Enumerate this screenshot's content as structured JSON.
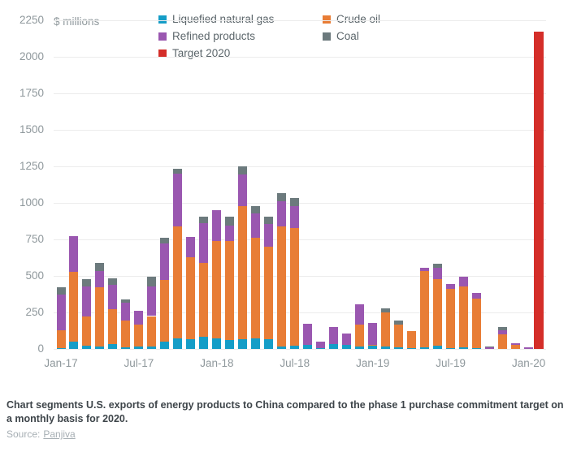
{
  "header": {
    "unit_label": "$ millions"
  },
  "legend": [
    {
      "key": "lng",
      "label": "Liquefied natural gas",
      "color": "#159DC7"
    },
    {
      "key": "crude",
      "label": "Crude oil",
      "color": "#E87D36"
    },
    {
      "key": "refined",
      "label": "Refined products",
      "color": "#9A57B0"
    },
    {
      "key": "coal",
      "label": "Coal",
      "color": "#6C7A7D"
    },
    {
      "key": "target",
      "label": "Target 2020",
      "color": "#D42E29"
    }
  ],
  "chart_data": {
    "type": "bar",
    "stacked": true,
    "unit": "$ millions",
    "ylim": [
      0,
      2250
    ],
    "yticks": [
      0,
      250,
      500,
      750,
      1000,
      1250,
      1500,
      1750,
      2000,
      2250
    ],
    "grid": true,
    "legend_position": "top",
    "categories": [
      "Jan-17",
      "Feb-17",
      "Mar-17",
      "Apr-17",
      "May-17",
      "Jun-17",
      "Jul-17",
      "Aug-17",
      "Sep-17",
      "Oct-17",
      "Nov-17",
      "Dec-17",
      "Jan-18",
      "Feb-18",
      "Mar-18",
      "Apr-18",
      "May-18",
      "Jun-18",
      "Jul-18",
      "Aug-18",
      "Sep-18",
      "Oct-18",
      "Nov-18",
      "Dec-18",
      "Jan-19",
      "Feb-19",
      "Mar-19",
      "Apr-19",
      "May-19",
      "Jun-19",
      "Jul-19",
      "Aug-19",
      "Sep-19",
      "Oct-19",
      "Nov-19",
      "Dec-19",
      "Jan-20"
    ],
    "x_tick_labels_shown": [
      "Jan-17",
      "Jul-17",
      "Jan-18",
      "Jul-18",
      "Jan-19",
      "Jul-19",
      "Jan-20"
    ],
    "series": [
      {
        "name": "Liquefied natural gas",
        "key": "lng",
        "values": [
          5,
          50,
          20,
          15,
          33,
          10,
          15,
          15,
          52,
          70,
          65,
          83,
          74,
          59,
          65,
          70,
          65,
          19,
          22,
          30,
          8,
          35,
          30,
          19,
          20,
          19,
          9,
          5,
          9,
          22,
          5,
          9,
          6,
          0,
          0,
          0,
          0
        ]
      },
      {
        "name": "Crude oil",
        "key": "crude",
        "values": [
          125,
          480,
          200,
          405,
          240,
          185,
          150,
          210,
          420,
          770,
          565,
          506,
          667,
          681,
          913,
          693,
          635,
          819,
          807,
          0,
          0,
          0,
          0,
          148,
          10,
          231,
          157,
          115,
          524,
          456,
          405,
          420,
          339,
          0,
          100,
          28,
          0
        ]
      },
      {
        "name": "Refined products",
        "key": "refined",
        "values": [
          240,
          245,
          210,
          115,
          165,
          120,
          95,
          205,
          250,
          360,
          139,
          272,
          209,
          107,
          217,
          167,
          155,
          172,
          148,
          140,
          42,
          115,
          75,
          139,
          150,
          0,
          0,
          0,
          22,
          78,
          33,
          67,
          37,
          15,
          28,
          13,
          13
        ]
      },
      {
        "name": "Coal",
        "key": "coal",
        "values": [
          50,
          0,
          48,
          55,
          45,
          22,
          0,
          65,
          37,
          35,
          0,
          46,
          0,
          56,
          56,
          48,
          48,
          56,
          56,
          0,
          0,
          0,
          0,
          0,
          0,
          28,
          28,
          0,
          0,
          28,
          0,
          0,
          0,
          3,
          24,
          0,
          0
        ]
      }
    ],
    "target": {
      "name": "Target 2020",
      "key": "target",
      "value": 2170,
      "x_position": "after Jan-20"
    }
  },
  "caption": {
    "text": "Chart segments U.S. exports of energy products to China compared to the phase 1 purchase commitment target on a monthly basis for 2020."
  },
  "source": {
    "prefix": "Source:",
    "link_text": "Panjiva"
  }
}
